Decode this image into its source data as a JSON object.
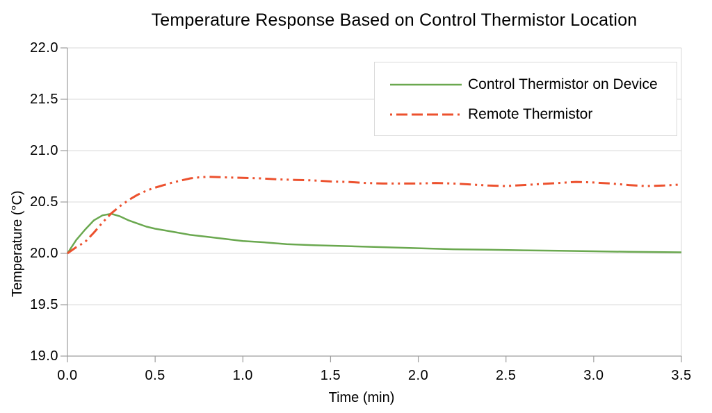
{
  "page": {
    "background": "#ffffff"
  },
  "chart_data": {
    "type": "line",
    "title": "Temperature Response Based on Control Thermistor Location",
    "xlabel": "Time (min)",
    "ylabel": "Temperature (°C)",
    "xlim": [
      0,
      3.5
    ],
    "ylim": [
      19.0,
      22.0
    ],
    "xtick_values": [
      0,
      0.5,
      1.0,
      1.5,
      2.0,
      2.5,
      3.0,
      3.5
    ],
    "xtick_labels": [
      "0.0",
      "0.5",
      "1.0",
      "1.5",
      "2.0",
      "2.5",
      "3.0",
      "3.5"
    ],
    "ytick_values": [
      19.0,
      19.5,
      20.0,
      20.5,
      21.0,
      21.5,
      22.0
    ],
    "ytick_labels": [
      "19.0",
      "19.5",
      "20.0",
      "20.5",
      "21.0",
      "21.5",
      "22.0"
    ],
    "grid": "horizontal-only",
    "grid_color": "#d9d9d9",
    "axis_color": "#9d9d9d",
    "legend_position": "top-right",
    "series": [
      {
        "name": "Control Thermistor on Device",
        "color": "#6aa84f",
        "line_style": "solid",
        "width": 2.5,
        "x": [
          0,
          0.05,
          0.1,
          0.15,
          0.2,
          0.25,
          0.3,
          0.35,
          0.4,
          0.45,
          0.5,
          0.6,
          0.7,
          0.8,
          0.9,
          1.0,
          1.1,
          1.25,
          1.4,
          1.6,
          1.8,
          2.0,
          2.2,
          2.4,
          2.6,
          2.8,
          3.0,
          3.2,
          3.5
        ],
        "y": [
          20.0,
          20.13,
          20.23,
          20.32,
          20.37,
          20.385,
          20.36,
          20.32,
          20.29,
          20.26,
          20.24,
          20.21,
          20.18,
          20.16,
          20.14,
          20.12,
          20.11,
          20.09,
          20.08,
          20.07,
          20.06,
          20.05,
          20.04,
          20.035,
          20.03,
          20.025,
          20.02,
          20.015,
          20.01
        ]
      },
      {
        "name": "Remote Thermistor",
        "color": "#ec512e",
        "line_style": "long-dash-dot-dot",
        "width": 3,
        "x": [
          0,
          0.05,
          0.1,
          0.15,
          0.2,
          0.25,
          0.3,
          0.35,
          0.4,
          0.45,
          0.5,
          0.55,
          0.6,
          0.65,
          0.7,
          0.75,
          0.8,
          0.9,
          1.0,
          1.1,
          1.2,
          1.3,
          1.4,
          1.5,
          1.6,
          1.7,
          1.8,
          1.9,
          2.0,
          2.1,
          2.2,
          2.3,
          2.4,
          2.5,
          2.6,
          2.7,
          2.8,
          2.9,
          3.0,
          3.1,
          3.2,
          3.3,
          3.4,
          3.5
        ],
        "y": [
          20.0,
          20.06,
          20.11,
          20.2,
          20.3,
          20.39,
          20.46,
          20.52,
          20.57,
          20.61,
          20.64,
          20.665,
          20.69,
          20.71,
          20.73,
          20.74,
          20.745,
          20.74,
          20.735,
          20.73,
          20.72,
          20.715,
          20.71,
          20.7,
          20.695,
          20.685,
          20.68,
          20.68,
          20.68,
          20.685,
          20.68,
          20.67,
          20.66,
          20.655,
          20.665,
          20.675,
          20.685,
          20.695,
          20.69,
          20.68,
          20.665,
          20.655,
          20.66,
          20.67
        ]
      }
    ]
  }
}
